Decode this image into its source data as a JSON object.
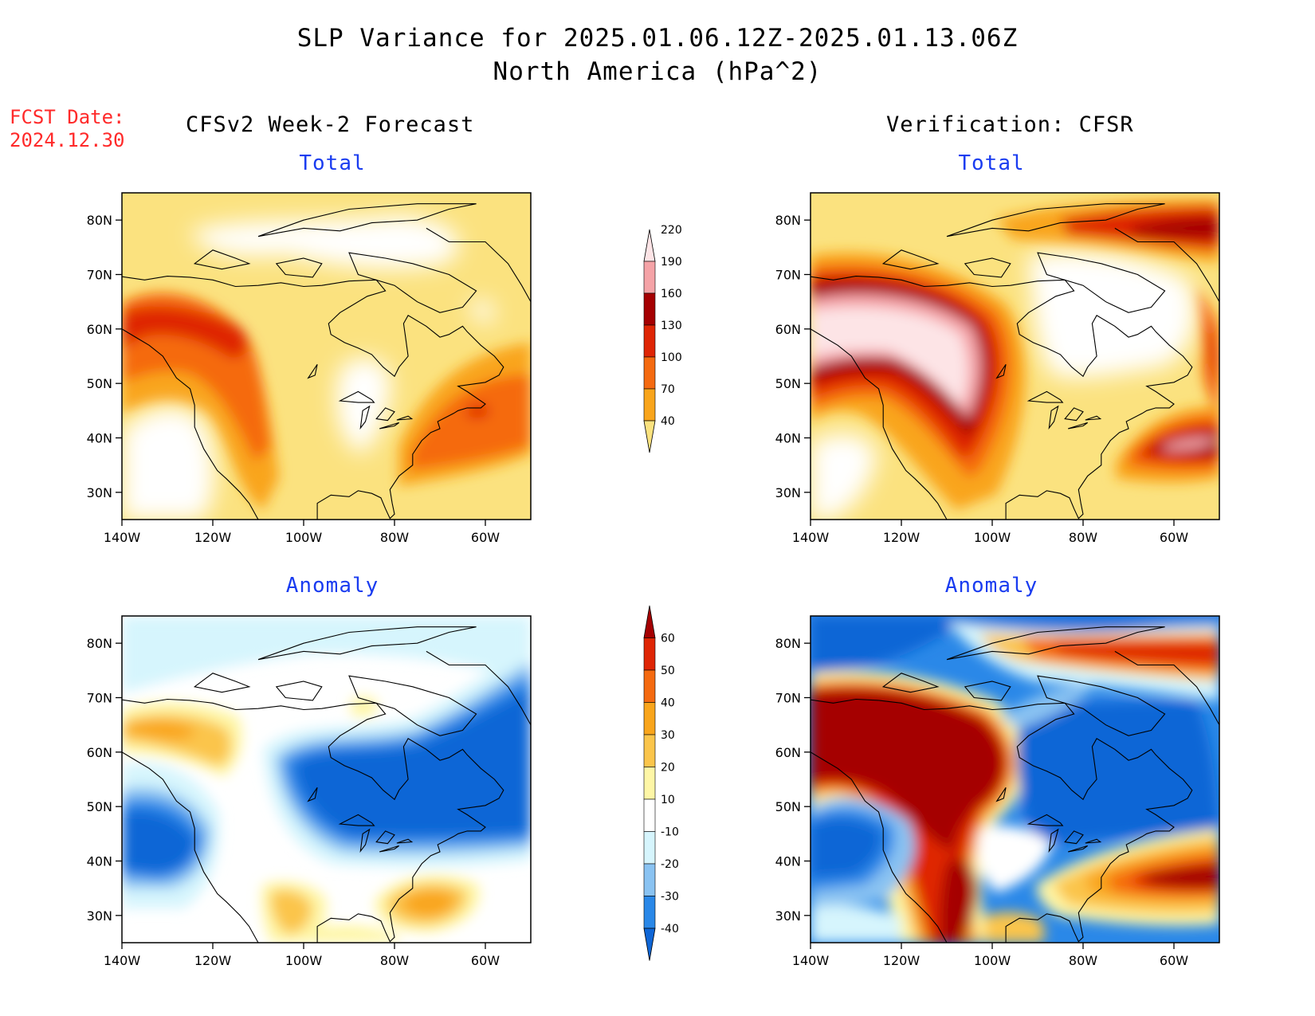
{
  "title": {
    "line1": "SLP Variance for 2025.01.06.12Z-2025.01.13.06Z",
    "line2": "North America (hPa^2)"
  },
  "fcst_date": {
    "label": "FCST Date:",
    "value": "2024.12.30"
  },
  "columns": {
    "left": "CFSv2 Week-2 Forecast",
    "right": "Verification: CFSR"
  },
  "panel_titles": {
    "total": "Total",
    "anomaly": "Anomaly"
  },
  "map": {
    "lat_labels": [
      "80N",
      "70N",
      "60N",
      "50N",
      "40N",
      "30N"
    ],
    "lon_labels": [
      "140W",
      "120W",
      "100W",
      "80W",
      "60W"
    ],
    "lat_range": [
      25,
      85
    ],
    "lon_range": [
      -140,
      -50
    ]
  },
  "colorbars": {
    "total": {
      "levels": [
        "40",
        "70",
        "100",
        "130",
        "160",
        "190",
        "220"
      ],
      "colors": [
        "#fbe27f",
        "#f9a51b",
        "#f56a10",
        "#df2505",
        "#a50002",
        "#f5a3a7",
        "#fde4e6"
      ]
    },
    "anomaly": {
      "levels": [
        "-40",
        "-30",
        "-20",
        "-10",
        "10",
        "20",
        "30",
        "40",
        "50",
        "60"
      ],
      "colors": [
        "#0f66d6",
        "#2a88e8",
        "#8ac3f2",
        "#d6f5fd",
        "#ffffff",
        "#fef6a6",
        "#fbc54b",
        "#f9a51b",
        "#f56a10",
        "#df2505",
        "#a50002"
      ]
    }
  },
  "palette": {
    "white": "#ffffff",
    "total_40": "#fbe27f",
    "total_70": "#f9a51b",
    "total_100": "#f56a10",
    "total_130": "#df2505",
    "total_160": "#a50002",
    "total_190": "#f5a3a7",
    "total_220": "#fde4e6",
    "anom_neg40": "#0f66d6",
    "anom_neg30": "#2a88e8",
    "anom_neg20": "#8ac3f2",
    "anom_neg10": "#d6f5fd",
    "anom_10": "#fef6a6",
    "anom_20": "#fbc54b",
    "anom_30": "#f9a51b",
    "anom_40": "#f56a10",
    "anom_50": "#df2505",
    "anom_60": "#a50002"
  }
}
